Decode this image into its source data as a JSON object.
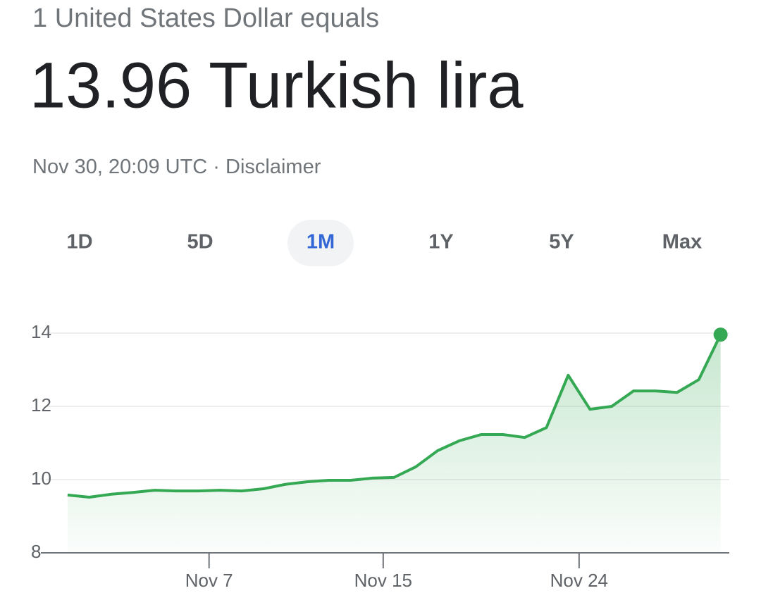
{
  "header": {
    "subtitle": "1 United States Dollar equals",
    "amount": "13.96 Turkish lira",
    "timestamp": "Nov 30, 20:09 UTC",
    "separator": "·",
    "disclaimer": "Disclaimer"
  },
  "tabs": {
    "items": [
      "1D",
      "5D",
      "1M",
      "1Y",
      "5Y",
      "Max"
    ],
    "selected": 2
  },
  "chart_data": {
    "type": "line",
    "color": "#34a853",
    "area": true,
    "grid": true,
    "x": [
      0.5,
      1.5,
      2.5,
      3.5,
      4.5,
      5.5,
      6.5,
      7.5,
      8.5,
      9.5,
      10.5,
      11.5,
      12.5,
      13.5,
      14.5,
      15.5,
      16.5,
      17.5,
      18.5,
      19.5,
      20.5,
      21.5,
      22.5,
      23.5,
      24.5,
      25.5,
      26.5,
      27.5,
      28.5,
      29.5,
      30.5
    ],
    "values": [
      9.58,
      9.52,
      9.6,
      9.65,
      9.71,
      9.69,
      9.69,
      9.71,
      9.69,
      9.75,
      9.87,
      9.94,
      9.98,
      9.98,
      10.04,
      10.06,
      10.35,
      10.79,
      11.06,
      11.23,
      11.23,
      11.15,
      11.42,
      12.85,
      11.92,
      12.0,
      12.42,
      12.42,
      12.38,
      12.73,
      13.96
    ],
    "xlim": [
      -0.5,
      30.9
    ],
    "xticks": [
      {
        "value": 7,
        "label": "Nov 7"
      },
      {
        "value": 15,
        "label": "Nov 15"
      },
      {
        "value": 24,
        "label": "Nov 24"
      }
    ],
    "ylim": [
      8,
      14
    ],
    "yticks": [
      8,
      10,
      12,
      14
    ]
  }
}
